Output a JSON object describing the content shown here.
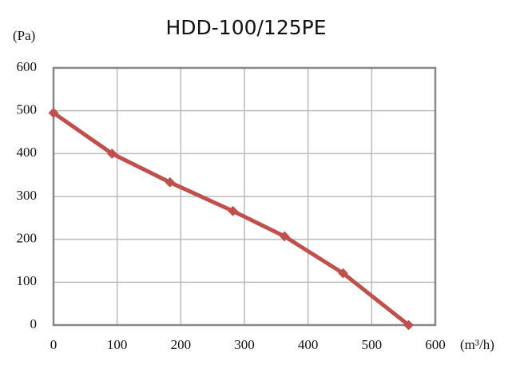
{
  "chart_data": {
    "type": "line",
    "title": "HDD-100/125PE",
    "y_label": "(Pa)",
    "x_label": "(m³/h)",
    "series": [
      {
        "name": "HDD-100/125PE",
        "color": "#c0504d",
        "x": [
          0,
          92,
          183,
          282,
          363,
          455,
          558
        ],
        "values": [
          495,
          400,
          333,
          266,
          207,
          121,
          0
        ]
      }
    ],
    "xlim": [
      0,
      600
    ],
    "xticks": [
      0,
      100,
      200,
      300,
      400,
      500,
      600
    ],
    "ylim": [
      0,
      600
    ],
    "yticks": [
      0,
      100,
      200,
      300,
      400,
      500,
      600
    ],
    "grid": true
  }
}
